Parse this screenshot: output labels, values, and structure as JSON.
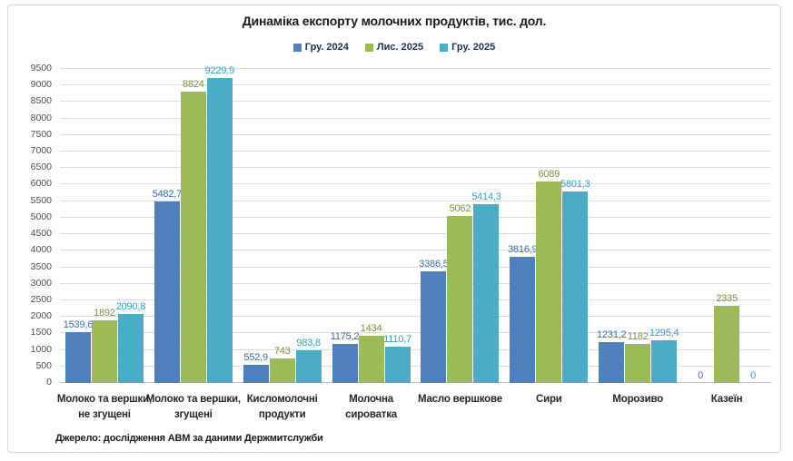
{
  "title": "Динаміка експорту молочних продуктів, тис. дол.",
  "source_note": "Джерело: дослідження АВМ за даними Держмитслужби",
  "colors": {
    "frame_border": "#d9d9d9",
    "gridline": "#dcdcdc",
    "axis_line": "#c0c0c0"
  },
  "chart_data": {
    "type": "bar",
    "title": "Динаміка експорту молочних продуктів, тис. дол.",
    "unit": "тис. дол.",
    "legend_position": "top",
    "grid": true,
    "decimal_separator": ",",
    "ylim": [
      0,
      9500
    ],
    "ytick_step": 500,
    "yticks": [
      0,
      500,
      1000,
      1500,
      2000,
      2500,
      3000,
      3500,
      4000,
      4500,
      5000,
      5500,
      6000,
      6500,
      7000,
      7500,
      8000,
      8500,
      9000,
      9500
    ],
    "categories": [
      {
        "lines": [
          "Молоко та вершки,",
          "не згущені"
        ]
      },
      {
        "lines": [
          "Молоко та вершки,",
          "згущені"
        ]
      },
      {
        "lines": [
          "Кисломолочні",
          "продукти"
        ]
      },
      {
        "lines": [
          "Молочна",
          "сироватка"
        ]
      },
      {
        "lines": [
          "Масло вершкове"
        ]
      },
      {
        "lines": [
          "Сири"
        ]
      },
      {
        "lines": [
          "Морозиво"
        ]
      },
      {
        "lines": [
          "Казеїн"
        ]
      }
    ],
    "series": [
      {
        "name": "Гру. 2024",
        "color": "#4e80bd",
        "label_color": "#3a6bab",
        "values": [
          1539.6,
          5482.7,
          552.9,
          1175.2,
          3386.5,
          3816.9,
          1231.2,
          0
        ]
      },
      {
        "name": "Лис. 2025",
        "color": "#9cba58",
        "label_color": "#77933c",
        "values": [
          1892,
          8824,
          743,
          1434,
          5062,
          6089,
          1182,
          2335
        ]
      },
      {
        "name": "Гру. 2025",
        "color": "#4aadc5",
        "label_color": "#35a0c2",
        "values": [
          2090.8,
          9229.9,
          983.8,
          1110.7,
          5414.3,
          5801.3,
          1295.4,
          0
        ]
      }
    ]
  }
}
